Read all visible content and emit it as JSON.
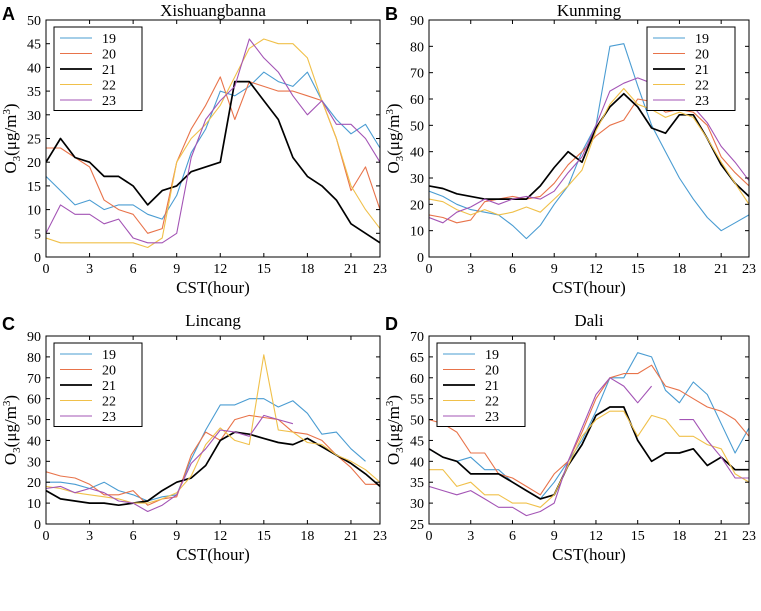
{
  "chart_data": [
    {
      "type": "line",
      "panel_label": "A",
      "title": "Xishuangbanna",
      "xlabel": "CST(hour)",
      "ylabel": {
        "main": "O",
        "sub": "3",
        "unit_open": "(μg/m",
        "sup": "3",
        "unit_close": ")"
      },
      "xlim": [
        0,
        23
      ],
      "ylim": [
        0,
        50
      ],
      "xticks": [
        0,
        3,
        6,
        9,
        12,
        15,
        18,
        21,
        23
      ],
      "yticks": [
        0,
        5,
        10,
        15,
        20,
        25,
        30,
        35,
        40,
        45,
        50
      ],
      "legend_position": "top-left",
      "x": [
        0,
        1,
        2,
        3,
        4,
        5,
        6,
        7,
        8,
        9,
        10,
        11,
        12,
        13,
        14,
        15,
        16,
        17,
        18,
        19,
        20,
        21,
        22,
        23
      ],
      "series": [
        {
          "name": "19",
          "color": "#4a9cd2",
          "values": [
            17,
            14,
            11,
            12,
            10,
            11,
            11,
            9,
            8,
            13,
            22,
            27,
            35,
            34,
            36,
            39,
            37,
            36,
            39,
            33,
            29,
            26,
            28,
            23
          ]
        },
        {
          "name": "20",
          "color": "#e8734a",
          "values": [
            23,
            23,
            21,
            19,
            12,
            10,
            9,
            5,
            6,
            20,
            27,
            32,
            38,
            29,
            37,
            36,
            35,
            35,
            34,
            33,
            25,
            14,
            19,
            10
          ]
        },
        {
          "name": "21",
          "color": "#000000",
          "values": [
            20,
            25,
            21,
            20,
            17,
            17,
            15,
            11,
            14,
            15,
            18,
            19,
            20,
            37,
            37,
            33,
            29,
            21,
            17,
            15,
            12,
            7,
            5,
            3
          ]
        },
        {
          "name": "22",
          "color": "#f0c04a",
          "values": [
            4,
            3,
            3,
            3,
            3,
            3,
            3,
            2,
            4,
            20,
            25,
            28,
            32,
            38,
            44,
            46,
            45,
            45,
            42,
            33,
            25,
            15,
            10,
            6
          ]
        },
        {
          "name": "23",
          "color": "#a354b5",
          "values": [
            5,
            11,
            9,
            9,
            7,
            8,
            4,
            3,
            3,
            5,
            21,
            29,
            33,
            36,
            46,
            42,
            39,
            34,
            30,
            33,
            28,
            28,
            25,
            20
          ]
        }
      ]
    },
    {
      "type": "line",
      "panel_label": "B",
      "title": "Kunming",
      "xlabel": "CST(hour)",
      "ylabel": {
        "main": "O",
        "sub": "3",
        "unit_open": "(μg/m",
        "sup": "3",
        "unit_close": ")"
      },
      "xlim": [
        0,
        23
      ],
      "ylim": [
        0,
        90
      ],
      "xticks": [
        0,
        3,
        6,
        9,
        12,
        15,
        18,
        21,
        23
      ],
      "yticks": [
        0,
        10,
        20,
        30,
        40,
        50,
        60,
        70,
        80,
        90
      ],
      "legend_position": "top-right",
      "x": [
        0,
        1,
        2,
        3,
        4,
        5,
        6,
        7,
        8,
        9,
        10,
        11,
        12,
        13,
        14,
        15,
        16,
        17,
        18,
        19,
        20,
        21,
        22,
        23
      ],
      "series": [
        {
          "name": "19",
          "color": "#4a9cd2",
          "values": [
            25,
            23,
            20,
            18,
            17,
            16,
            12,
            7,
            12,
            20,
            27,
            40,
            50,
            80,
            81,
            65,
            50,
            40,
            30,
            22,
            15,
            10,
            13,
            16
          ]
        },
        {
          "name": "20",
          "color": "#e8734a",
          "values": [
            16,
            15,
            13,
            14,
            21,
            22,
            23,
            22,
            23,
            28,
            35,
            40,
            46,
            50,
            52,
            60,
            59,
            55,
            56,
            55,
            50,
            38,
            32,
            27
          ]
        },
        {
          "name": "21",
          "color": "#000000",
          "values": [
            27,
            26,
            24,
            23,
            22,
            22,
            22,
            22,
            27,
            34,
            40,
            36,
            49,
            57,
            62,
            57,
            49,
            47,
            54,
            54,
            45,
            35,
            28,
            23
          ]
        },
        {
          "name": "22",
          "color": "#f0c04a",
          "values": [
            22,
            21,
            18,
            16,
            18,
            16,
            17,
            19,
            17,
            22,
            27,
            33,
            48,
            58,
            64,
            58,
            56,
            53,
            55,
            53,
            45,
            36,
            28,
            20
          ]
        },
        {
          "name": "23",
          "color": "#a354b5",
          "values": [
            15,
            13,
            17,
            19,
            22,
            20,
            22,
            23,
            22,
            25,
            32,
            38,
            50,
            63,
            66,
            68,
            66,
            63,
            56,
            57,
            51,
            42,
            36,
            29
          ]
        }
      ]
    },
    {
      "type": "line",
      "panel_label": "C",
      "title": "Lincang",
      "xlabel": "CST(hour)",
      "ylabel": {
        "main": "O",
        "sub": "3",
        "unit_open": "(μg/m",
        "sup": "3",
        "unit_close": ")"
      },
      "xlim": [
        0,
        23
      ],
      "ylim": [
        0,
        90
      ],
      "xticks": [
        0,
        3,
        6,
        9,
        12,
        15,
        18,
        21,
        23
      ],
      "yticks": [
        0,
        10,
        20,
        30,
        40,
        50,
        60,
        70,
        80,
        90
      ],
      "legend_position": "top-left",
      "x": [
        0,
        1,
        2,
        3,
        4,
        5,
        6,
        7,
        8,
        9,
        10,
        11,
        12,
        13,
        14,
        15,
        16,
        17,
        18,
        19,
        20,
        21,
        22,
        23
      ],
      "series": [
        {
          "name": "19",
          "color": "#4a9cd2",
          "values": [
            20,
            20,
            19,
            17,
            20,
            16,
            14,
            11,
            13,
            14,
            31,
            45,
            57,
            57,
            60,
            60,
            56,
            59,
            53,
            43,
            44,
            36,
            30,
            null
          ]
        },
        {
          "name": "20",
          "color": "#e8734a",
          "values": [
            25,
            23,
            22,
            19,
            14,
            14,
            16,
            9,
            12,
            13,
            33,
            44,
            40,
            50,
            52,
            51,
            50,
            44,
            43,
            40,
            33,
            27,
            19,
            19
          ]
        },
        {
          "name": "21",
          "color": "#000000",
          "values": [
            16,
            12,
            11,
            10,
            10,
            9,
            10,
            11,
            16,
            20,
            22,
            28,
            40,
            44,
            43,
            41,
            39,
            38,
            41,
            37,
            33,
            29,
            24,
            18
          ]
        },
        {
          "name": "22",
          "color": "#f0c04a",
          "values": [
            18,
            17,
            15,
            14,
            13,
            12,
            10,
            10,
            12,
            15,
            23,
            38,
            46,
            40,
            38,
            81,
            45,
            44,
            39,
            38,
            33,
            30,
            26,
            20
          ]
        },
        {
          "name": "23",
          "color": "#a354b5",
          "values": [
            17,
            18,
            15,
            17,
            15,
            11,
            10,
            6,
            9,
            14,
            29,
            36,
            45,
            44,
            42,
            52,
            50,
            48,
            null,
            null,
            null,
            null,
            null,
            null
          ]
        }
      ]
    },
    {
      "type": "line",
      "panel_label": "D",
      "title": "Dali",
      "xlabel": "CST(hour)",
      "ylabel": {
        "main": "O",
        "sub": "3",
        "unit_open": "(μg/m",
        "sup": "3",
        "unit_close": ")"
      },
      "xlim": [
        0,
        23
      ],
      "ylim": [
        25,
        70
      ],
      "xticks": [
        0,
        3,
        6,
        9,
        12,
        15,
        18,
        21,
        23
      ],
      "yticks": [
        25,
        30,
        35,
        40,
        45,
        50,
        55,
        60,
        65,
        70
      ],
      "legend_position": "top-left",
      "x": [
        0,
        1,
        2,
        3,
        4,
        5,
        6,
        7,
        8,
        9,
        10,
        11,
        12,
        13,
        14,
        15,
        16,
        17,
        18,
        19,
        20,
        21,
        22,
        23
      ],
      "series": [
        {
          "name": "19",
          "color": "#4a9cd2",
          "values": [
            43,
            41,
            40,
            41,
            38,
            38,
            35,
            33,
            31,
            35,
            40,
            45,
            52,
            60,
            60,
            66,
            65,
            57,
            54,
            59,
            56,
            49,
            42,
            48
          ]
        },
        {
          "name": "20",
          "color": "#e8734a",
          "values": [
            50,
            49,
            47,
            42,
            42,
            37,
            36,
            34,
            32,
            37,
            40,
            47,
            55,
            60,
            61,
            61,
            63,
            58,
            57,
            55,
            53,
            52,
            50,
            46
          ]
        },
        {
          "name": "21",
          "color": "#000000",
          "values": [
            43,
            41,
            40,
            37,
            37,
            37,
            35,
            33,
            31,
            32,
            39,
            44,
            51,
            53,
            53,
            45,
            40,
            42,
            42,
            43,
            39,
            41,
            38,
            38
          ]
        },
        {
          "name": "22",
          "color": "#f0c04a",
          "values": [
            38,
            38,
            34,
            35,
            32,
            32,
            30,
            30,
            29,
            32,
            39,
            46,
            50,
            52,
            52,
            46,
            51,
            50,
            46,
            46,
            44,
            43,
            37,
            35
          ]
        },
        {
          "name": "23",
          "color": "#a354b5",
          "values": [
            34,
            33,
            32,
            33,
            31,
            29,
            29,
            27,
            28,
            30,
            40,
            48,
            56,
            60,
            58,
            54,
            58,
            null,
            50,
            50,
            45,
            41,
            36,
            36
          ]
        }
      ]
    }
  ]
}
